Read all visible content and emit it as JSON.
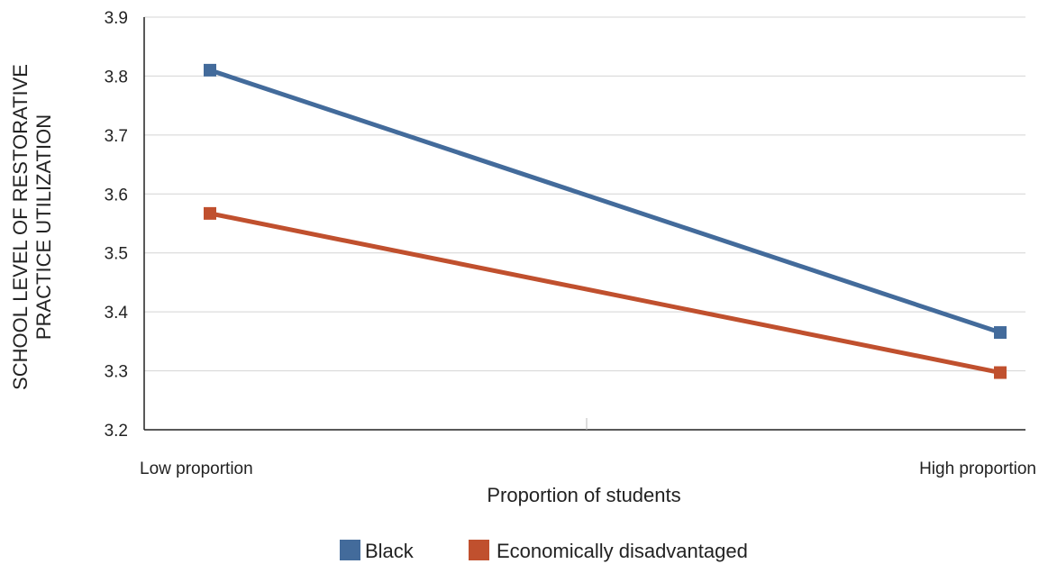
{
  "chart_data": {
    "type": "line",
    "categories": [
      "Low proportion",
      "High proportion"
    ],
    "series": [
      {
        "name": "Black",
        "values": [
          3.81,
          3.365
        ],
        "color": "#436b9b"
      },
      {
        "name": "Economically disadvantaged",
        "values": [
          3.567,
          3.297
        ],
        "color": "#c0502e"
      }
    ],
    "xlabel": "Proportion of students",
    "ylabel_lines": [
      "SCHOOL LEVEL OF RESTORATIVE",
      "PRACTICE UTILIZATION"
    ],
    "ylim": [
      3.2,
      3.9
    ],
    "yticks": [
      "3.2",
      "3.3",
      "3.4",
      "3.5",
      "3.6",
      "3.7",
      "3.8",
      "3.9"
    ],
    "grid": true,
    "legend_position": "bottom",
    "marker": "square-icon"
  }
}
